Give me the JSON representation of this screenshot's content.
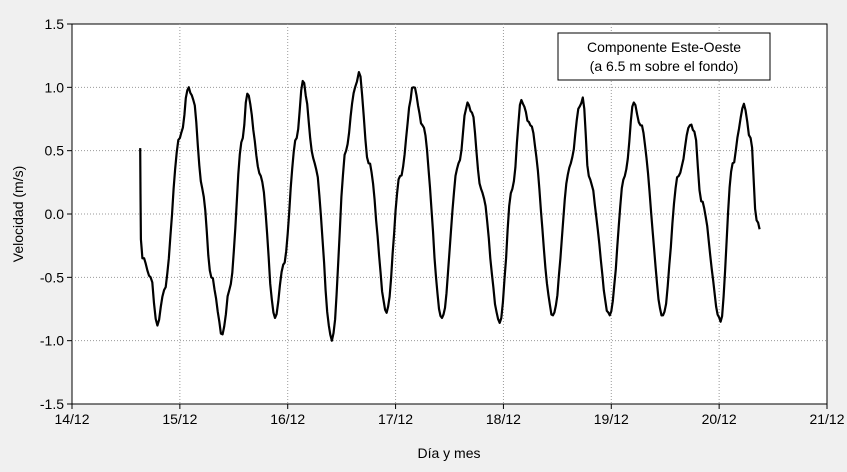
{
  "chart_data": {
    "type": "line",
    "title": "",
    "xlabel": "Día y mes",
    "ylabel": "Velocidad (m/s)",
    "xlim": [
      "2011-12-14",
      "2011-12-21"
    ],
    "ylim": [
      -1.5,
      1.5
    ],
    "x_ticks": [
      "14/12",
      "15/12",
      "16/12",
      "17/12",
      "18/12",
      "19/12",
      "20/12",
      "21/12"
    ],
    "y_ticks": [
      "-1.5",
      "-1.0",
      "-0.5",
      "0.0",
      "0.5",
      "1.0",
      "1.5"
    ],
    "grid": true,
    "annotation": [
      "Componente Este-Oeste",
      "(a 6.5 m sobre el fondo)"
    ],
    "legend_position": "top-right",
    "line_color": "#000000",
    "background_color": "#f0f0f0",
    "series": [
      {
        "x": [
          "2011-12-14 15:10",
          "2011-12-14 15:20",
          "2011-12-14 15:40",
          "2011-12-14 17:30",
          "2011-12-14 19:00",
          "2011-12-14 20:30",
          "2011-12-15 00:00",
          "2011-12-15 02:00",
          "2011-12-15 03:00",
          "2011-12-15 05:00",
          "2011-12-15 07:00",
          "2011-12-15 09:30",
          "2011-12-15 11:00",
          "2011-12-15 14:00",
          "2011-12-15 15:00",
          "2011-12-15 18:00",
          "2011-12-15 21:10",
          "2011-12-15 23:00",
          "2011-12-16 02:00",
          "2011-12-16 03:20",
          "2011-12-16 06:00",
          "2011-12-16 09:50",
          "2011-12-16 13:00",
          "2011-12-16 15:00",
          "2011-12-16 15:50",
          "2011-12-16 18:00",
          "2011-12-16 22:00",
          "2011-12-17 01:00",
          "2011-12-17 04:00",
          "2011-12-17 06:00",
          "2011-12-17 10:20",
          "2011-12-17 14:00",
          "2011-12-17 16:00",
          "2011-12-17 17:00",
          "2011-12-17 19:00",
          "2011-12-17 23:10",
          "2011-12-18 02:00",
          "2011-12-18 04:00",
          "2011-12-18 06:00",
          "2011-12-18 11:00",
          "2011-12-18 15:00",
          "2011-12-18 17:00",
          "2011-12-18 17:40",
          "2011-12-18 19:00",
          "2011-12-18 23:40",
          "2011-12-19 03:00",
          "2011-12-19 05:00",
          "2011-12-19 06:30",
          "2011-12-19 11:30",
          "2011-12-19 15:00",
          "2011-12-19 17:30",
          "2011-12-19 18:30",
          "2011-12-19 20:00",
          "2011-12-20 00:20",
          "2011-12-20 03:00",
          "2011-12-20 05:30",
          "2011-12-20 07:00",
          "2011-12-20 08:20",
          "2011-12-20 09:00"
        ],
        "values": [
          0.52,
          -0.2,
          -0.35,
          -0.5,
          -0.88,
          -0.6,
          0.6,
          1.0,
          0.9,
          0.2,
          -0.5,
          -0.95,
          -0.6,
          0.6,
          0.95,
          0.3,
          -0.82,
          -0.4,
          0.6,
          1.05,
          0.4,
          -1.0,
          0.5,
          1.0,
          1.12,
          0.4,
          -0.78,
          0.3,
          1.0,
          0.7,
          -0.82,
          0.4,
          0.88,
          0.8,
          0.2,
          -0.86,
          0.2,
          0.9,
          0.7,
          -0.8,
          0.4,
          0.85,
          0.92,
          0.3,
          -0.8,
          0.3,
          0.88,
          0.7,
          -0.8,
          0.3,
          0.7,
          0.65,
          0.1,
          -0.85,
          0.4,
          0.87,
          0.6,
          -0.05,
          -0.12
        ]
      }
    ]
  }
}
